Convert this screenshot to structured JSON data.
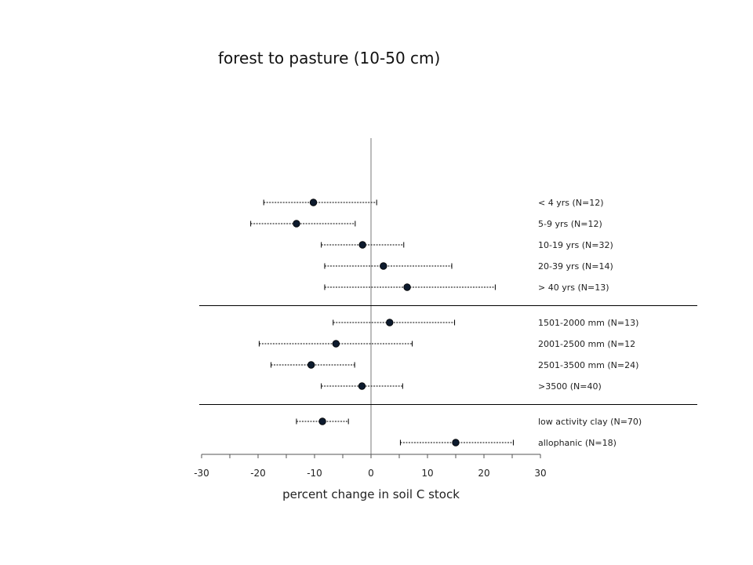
{
  "chart_data": {
    "type": "forest",
    "title": "forest to pasture (10-50 cm)",
    "xlabel": "percent change in soil C stock",
    "xlim": [
      -30,
      30
    ],
    "xticks": [
      -30,
      -20,
      -10,
      0,
      10,
      20,
      30
    ],
    "minor_tick_step": 5,
    "groups": [
      {
        "rows": [
          {
            "label": "< 4 yrs (N=12)",
            "mean": -10.2,
            "lower": -19.0,
            "upper": 1.0
          },
          {
            "label": "5-9 yrs (N=12)",
            "mean": -13.2,
            "lower": -21.3,
            "upper": -2.8
          },
          {
            "label": "10-19 yrs (N=32)",
            "mean": -1.5,
            "lower": -8.8,
            "upper": 5.8
          },
          {
            "label": "20-39 yrs (N=14)",
            "mean": 2.2,
            "lower": -8.2,
            "upper": 14.3
          },
          {
            "label": "> 40 yrs (N=13)",
            "mean": 6.4,
            "lower": -8.2,
            "upper": 22.0
          }
        ]
      },
      {
        "rows": [
          {
            "label": "1501-2000  mm (N=13)",
            "mean": 3.3,
            "lower": -6.7,
            "upper": 14.8
          },
          {
            "label": "2001-2500  mm (N=12",
            "mean": -6.2,
            "lower": -19.8,
            "upper": 7.3
          },
          {
            "label": "2501-3500  mm (N=24)",
            "mean": -10.6,
            "lower": -17.7,
            "upper": -2.9
          },
          {
            "label": ">3500  (N=40)",
            "mean": -1.6,
            "lower": -8.8,
            "upper": 5.6
          }
        ]
      },
      {
        "rows": [
          {
            "label": "low activity clay (N=70)",
            "mean": -8.6,
            "lower": -13.2,
            "upper": -4.0
          },
          {
            "label": "allophanic (N=18)",
            "mean": 15.0,
            "lower": 5.2,
            "upper": 25.2
          }
        ]
      }
    ],
    "colors": {
      "marker": "#0d1b2e",
      "line": "#000000"
    }
  }
}
